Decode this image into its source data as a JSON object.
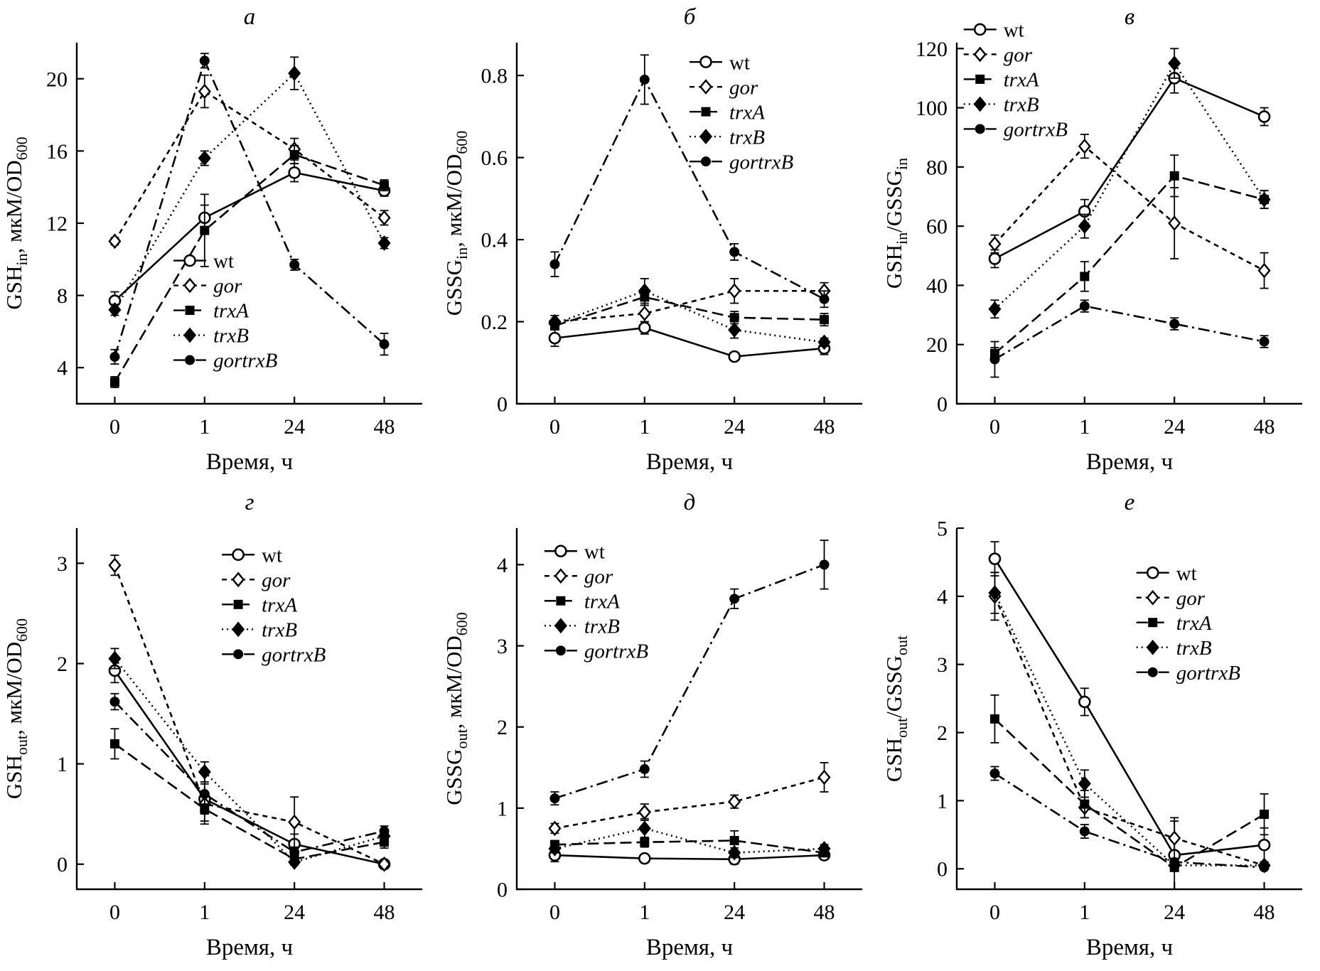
{
  "figure": {
    "background": "#ffffff",
    "ink_color": "#000000",
    "x_categories": [
      "0",
      "1",
      "24",
      "48"
    ],
    "x_axis_label": "Время, ч",
    "series_styles": [
      {
        "key": "wt",
        "label": "wt",
        "italic": false,
        "marker": "circle-open",
        "dash": "solid"
      },
      {
        "key": "gor",
        "label": "gor",
        "italic": true,
        "marker": "diamond-open",
        "dash": "dash-short"
      },
      {
        "key": "trxA",
        "label": "trxA",
        "italic": true,
        "marker": "square-filled",
        "dash": "dash-long"
      },
      {
        "key": "trxB",
        "label": "trxB",
        "italic": true,
        "marker": "diamond-filled",
        "dash": "dot"
      },
      {
        "key": "gortrxB",
        "label": "gortrxB",
        "italic": true,
        "marker": "circle-filled",
        "dash": "dash-dot"
      }
    ]
  },
  "chart_data": [
    {
      "panel": "а",
      "type": "line",
      "ylabel_segments": [
        {
          "t": "GSH"
        },
        {
          "t": "in",
          "sub": true
        },
        {
          "t": ", мкМ/OD"
        },
        {
          "t": "600",
          "sub": true
        }
      ],
      "ylim": [
        2,
        22
      ],
      "ytick_values": [
        4,
        8,
        12,
        16,
        20
      ],
      "ytick_labels": [
        "4",
        "8",
        "12",
        "16",
        "20"
      ],
      "legend_pos": {
        "x": 0.28,
        "y": 0.57
      },
      "series": [
        {
          "name": "wt",
          "values": [
            7.7,
            12.3,
            14.8,
            13.8
          ],
          "errors": [
            0.5,
            0.7,
            0.5,
            0.3
          ]
        },
        {
          "name": "gor",
          "values": [
            11.0,
            19.3,
            16.1,
            12.3
          ],
          "errors": [
            0.2,
            0.9,
            0.6,
            0.4
          ]
        },
        {
          "name": "trxA",
          "values": [
            3.2,
            11.6,
            15.8,
            14.1
          ],
          "errors": [
            0.3,
            2.0,
            0.5,
            0.3
          ]
        },
        {
          "name": "trxB",
          "values": [
            7.2,
            15.6,
            20.3,
            10.9
          ],
          "errors": [
            0.3,
            0.4,
            0.9,
            0.3
          ]
        },
        {
          "name": "gortrxB",
          "values": [
            4.6,
            21.0,
            9.7,
            5.3
          ],
          "errors": [
            0.4,
            0.4,
            0.3,
            0.6
          ]
        }
      ]
    },
    {
      "panel": "б",
      "type": "line",
      "ylabel_segments": [
        {
          "t": "GSSG"
        },
        {
          "t": "in",
          "sub": true
        },
        {
          "t": ", мкМ/OD"
        },
        {
          "t": "600",
          "sub": true
        }
      ],
      "ylim": [
        0,
        0.88
      ],
      "ytick_values": [
        0,
        0.2,
        0.4,
        0.6,
        0.8
      ],
      "ytick_labels": [
        "0",
        "0.2",
        "0.4",
        "0.6",
        "0.8"
      ],
      "legend_pos": {
        "x": 0.5,
        "y": 0.02
      },
      "series": [
        {
          "name": "wt",
          "values": [
            0.16,
            0.185,
            0.115,
            0.135
          ],
          "errors": [
            0.02,
            0.015,
            0.01,
            0.015
          ]
        },
        {
          "name": "gor",
          "values": [
            0.2,
            0.22,
            0.275,
            0.275
          ],
          "errors": [
            0.015,
            0.02,
            0.03,
            0.02
          ]
        },
        {
          "name": "trxA",
          "values": [
            0.19,
            0.26,
            0.21,
            0.205
          ],
          "errors": [
            0.01,
            0.02,
            0.015,
            0.015
          ]
        },
        {
          "name": "trxB",
          "values": [
            0.195,
            0.275,
            0.18,
            0.15
          ],
          "errors": [
            0.01,
            0.03,
            0.02,
            0.01
          ]
        },
        {
          "name": "gortrxB",
          "values": [
            0.34,
            0.79,
            0.37,
            0.255
          ],
          "errors": [
            0.03,
            0.06,
            0.02,
            0.02
          ]
        }
      ]
    },
    {
      "panel": "в",
      "type": "line",
      "ylabel_segments": [
        {
          "t": "GSH"
        },
        {
          "t": "in",
          "sub": true
        },
        {
          "t": "/GSSG"
        },
        {
          "t": "in",
          "sub": true
        }
      ],
      "ylim": [
        0,
        122
      ],
      "ytick_values": [
        0,
        20,
        40,
        60,
        80,
        100,
        120
      ],
      "ytick_labels": [
        "0",
        "20",
        "40",
        "60",
        "80",
        "100",
        "120"
      ],
      "legend_pos": {
        "x": 0.02,
        "y": -0.07
      },
      "series": [
        {
          "name": "wt",
          "values": [
            49,
            65,
            110,
            97
          ],
          "errors": [
            3,
            4,
            5,
            3
          ]
        },
        {
          "name": "gor",
          "values": [
            54,
            87,
            61,
            45
          ],
          "errors": [
            3,
            4,
            12,
            6
          ]
        },
        {
          "name": "trxA",
          "values": [
            17,
            43,
            77,
            69
          ],
          "errors": [
            2,
            5,
            7,
            3
          ]
        },
        {
          "name": "trxB",
          "values": [
            32,
            60,
            115,
            69
          ],
          "errors": [
            3,
            4,
            5,
            3
          ]
        },
        {
          "name": "gortrxB",
          "values": [
            15,
            33,
            27,
            21
          ],
          "errors": [
            6,
            2,
            2,
            2
          ]
        }
      ]
    },
    {
      "panel": "г",
      "type": "line",
      "ylabel_segments": [
        {
          "t": "GSH"
        },
        {
          "t": "out",
          "sub": true
        },
        {
          "t": ", мкМ/OD"
        },
        {
          "t": "600",
          "sub": true
        }
      ],
      "ylim": [
        -0.25,
        3.35
      ],
      "ytick_values": [
        0,
        1,
        2,
        3
      ],
      "ytick_labels": [
        "0",
        "1",
        "2",
        "3"
      ],
      "legend_pos": {
        "x": 0.42,
        "y": 0.04
      },
      "series": [
        {
          "name": "wt",
          "values": [
            1.93,
            0.65,
            0.2,
            0.0
          ],
          "errors": [
            0.12,
            0.25,
            0.1,
            0.04
          ]
        },
        {
          "name": "gor",
          "values": [
            2.98,
            0.6,
            0.42,
            0.0
          ],
          "errors": [
            0.1,
            0.1,
            0.25,
            0.04
          ]
        },
        {
          "name": "trxA",
          "values": [
            1.2,
            0.55,
            0.05,
            0.22
          ],
          "errors": [
            0.15,
            0.12,
            0.05,
            0.06
          ]
        },
        {
          "name": "trxB",
          "values": [
            2.05,
            0.92,
            0.02,
            0.28
          ],
          "errors": [
            0.1,
            0.1,
            0.03,
            0.05
          ]
        },
        {
          "name": "gortrxB",
          "values": [
            1.62,
            0.7,
            0.12,
            0.33
          ],
          "errors": [
            0.08,
            0.1,
            0.05,
            0.05
          ]
        }
      ]
    },
    {
      "panel": "д",
      "type": "line",
      "ylabel_segments": [
        {
          "t": "GSSG"
        },
        {
          "t": "out",
          "sub": true
        },
        {
          "t": ", мкМ/OD"
        },
        {
          "t": "600",
          "sub": true
        }
      ],
      "ylim": [
        0,
        4.45
      ],
      "ytick_values": [
        0,
        1,
        2,
        3,
        4
      ],
      "ytick_labels": [
        "0",
        "1",
        "2",
        "3",
        "4"
      ],
      "legend_pos": {
        "x": 0.08,
        "y": 0.03
      },
      "series": [
        {
          "name": "wt",
          "values": [
            0.42,
            0.38,
            0.37,
            0.42
          ],
          "errors": [
            0.08,
            0.05,
            0.06,
            0.05
          ]
        },
        {
          "name": "gor",
          "values": [
            0.75,
            0.95,
            1.08,
            1.38
          ],
          "errors": [
            0.06,
            0.1,
            0.08,
            0.18
          ]
        },
        {
          "name": "trxA",
          "values": [
            0.55,
            0.58,
            0.6,
            0.45
          ],
          "errors": [
            0.05,
            0.06,
            0.12,
            0.05
          ]
        },
        {
          "name": "trxB",
          "values": [
            0.5,
            0.75,
            0.45,
            0.5
          ],
          "errors": [
            0.05,
            0.12,
            0.06,
            0.05
          ]
        },
        {
          "name": "gortrxB",
          "values": [
            1.12,
            1.48,
            3.58,
            4.0
          ],
          "errors": [
            0.08,
            0.1,
            0.12,
            0.3
          ]
        }
      ]
    },
    {
      "panel": "е",
      "type": "line",
      "ylabel_segments": [
        {
          "t": "GSH"
        },
        {
          "t": "out",
          "sub": true
        },
        {
          "t": "/GSSG"
        },
        {
          "t": "out",
          "sub": true
        }
      ],
      "ylim": [
        -0.3,
        5.0
      ],
      "ytick_values": [
        0,
        1,
        2,
        3,
        4,
        5
      ],
      "ytick_labels": [
        "0",
        "1",
        "2",
        "3",
        "4",
        "5"
      ],
      "legend_pos": {
        "x": 0.52,
        "y": 0.09
      },
      "series": [
        {
          "name": "wt",
          "values": [
            4.55,
            2.45,
            0.2,
            0.35
          ],
          "errors": [
            0.25,
            0.2,
            0.5,
            0.25
          ]
        },
        {
          "name": "gor",
          "values": [
            4.0,
            0.9,
            0.45,
            0.05
          ],
          "errors": [
            0.35,
            0.15,
            0.3,
            0.05
          ]
        },
        {
          "name": "trxA",
          "values": [
            2.2,
            0.95,
            0.02,
            0.8
          ],
          "errors": [
            0.35,
            0.2,
            0.05,
            0.3
          ]
        },
        {
          "name": "trxB",
          "values": [
            4.05,
            1.25,
            0.05,
            0.05
          ],
          "errors": [
            0.3,
            0.2,
            0.05,
            0.05
          ]
        },
        {
          "name": "gortrxB",
          "values": [
            1.4,
            0.55,
            0.1,
            0.02
          ],
          "errors": [
            0.1,
            0.1,
            0.05,
            0.03
          ]
        }
      ]
    }
  ]
}
